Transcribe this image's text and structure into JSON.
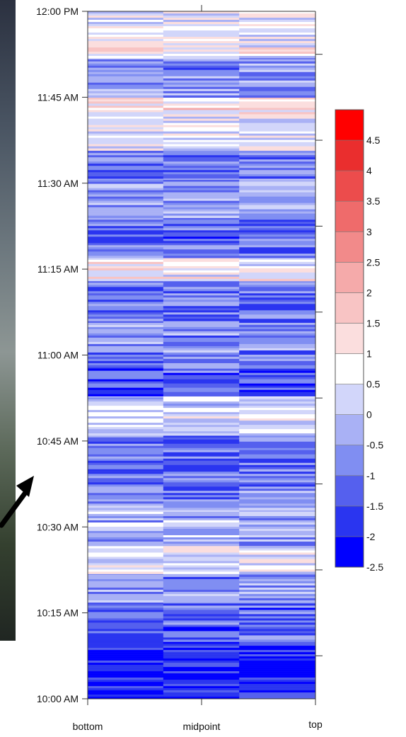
{
  "chart_data": {
    "type": "heatmap",
    "title": "",
    "xlabel": "",
    "ylabel": "",
    "x_categories": [
      "bottom",
      "midpoint",
      "top"
    ],
    "y_ticks": [
      "10:00 AM",
      "10:15 AM",
      "10:30 AM",
      "10:45 AM",
      "11:00 AM",
      "11:15 AM",
      "11:30 AM",
      "11:45 AM",
      "12:00 PM"
    ],
    "y_range": [
      "10:00 AM",
      "12:00 PM"
    ],
    "colorbar": {
      "levels": [
        -2.5,
        -2,
        -1.5,
        -1,
        -0.5,
        0,
        0.5,
        1,
        1.5,
        2,
        2.5,
        3,
        3.5,
        4,
        4.5
      ],
      "tick_labels": [
        "4.5",
        "4",
        "3.5",
        "3",
        "2.5",
        "2",
        "1.5",
        "1",
        "0.5",
        "0",
        "-0.5",
        "-1",
        "-1.5",
        "-2",
        "-2.5"
      ],
      "colors": [
        "#0000ff",
        "#2a35f0",
        "#5560ee",
        "#808ef2",
        "#a9b1f5",
        "#d2d6fa",
        "#ffffff",
        "#fbdede",
        "#f8c4c4",
        "#f5aaaa",
        "#f28a8a",
        "#ef6b6b",
        "#ec4c4c",
        "#ea2e2e",
        "#ff0000"
      ]
    },
    "bands": [
      {
        "from": "10:00 AM",
        "to": "10:10 AM",
        "value": -2.0
      },
      {
        "from": "10:10 AM",
        "to": "10:17 AM",
        "value": -1.2
      },
      {
        "from": "10:17 AM",
        "to": "10:22 AM",
        "value": -0.6
      },
      {
        "from": "10:22 AM",
        "to": "10:27 AM",
        "value": 0.5
      },
      {
        "from": "10:27 AM",
        "to": "10:33 AM",
        "value": -0.3
      },
      {
        "from": "10:33 AM",
        "to": "10:40 AM",
        "value": -0.8
      },
      {
        "from": "10:40 AM",
        "to": "10:46 AM",
        "value": -1.0
      },
      {
        "from": "10:46 AM",
        "to": "10:53 AM",
        "value": 0.2
      },
      {
        "from": "10:53 AM",
        "to": "10:58 AM",
        "value": -1.5
      },
      {
        "from": "10:58 AM",
        "to": "11:06 AM",
        "value": -0.7
      },
      {
        "from": "11:06 AM",
        "to": "11:13 AM",
        "value": -0.9
      },
      {
        "from": "11:13 AM",
        "to": "11:17 AM",
        "value": 0.8
      },
      {
        "from": "11:17 AM",
        "to": "11:24 AM",
        "value": -1.1
      },
      {
        "from": "11:24 AM",
        "to": "11:31 AM",
        "value": -0.4
      },
      {
        "from": "11:31 AM",
        "to": "11:36 AM",
        "value": -0.9
      },
      {
        "from": "11:36 AM",
        "to": "11:42 AM",
        "value": 0.4
      },
      {
        "from": "11:42 AM",
        "to": "11:45 AM",
        "value": 1.1
      },
      {
        "from": "11:45 AM",
        "to": "11:52 AM",
        "value": -0.6
      },
      {
        "from": "11:52 AM",
        "to": "12:00 PM",
        "value": 0.7
      }
    ]
  },
  "colors": {
    "axis": "#333333",
    "arrow": "#000000"
  }
}
